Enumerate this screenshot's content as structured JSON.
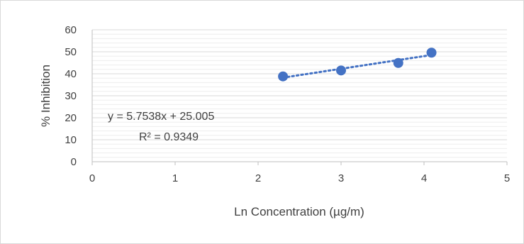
{
  "chart_data": {
    "type": "scatter",
    "title": "",
    "xlabel": "Ln Concentration (µg/m)",
    "ylabel": "% Inhibition",
    "xlim": [
      0,
      5
    ],
    "ylim": [
      0,
      60
    ],
    "xticks": [
      "0",
      "1",
      "2",
      "3",
      "4",
      "5"
    ],
    "yticks": [
      "0",
      "10",
      "20",
      "30",
      "40",
      "50",
      "60"
    ],
    "grid": true,
    "legend": "none",
    "series": [
      {
        "points": [
          {
            "x": 2.3,
            "y": 38.8
          },
          {
            "x": 3.0,
            "y": 41.5
          },
          {
            "x": 3.69,
            "y": 44.9
          },
          {
            "x": 4.09,
            "y": 49.6
          }
        ],
        "color": "#4472c4"
      }
    ],
    "trendline": {
      "type": "linear",
      "style": "dotted",
      "slope": 5.7538,
      "intercept": 25.005,
      "x_from": 2.3,
      "x_to": 4.09,
      "color": "#4472c4"
    },
    "annotations": {
      "equation": "y = 5.7538x + 25.005",
      "r_squared": "R² = 0.9349"
    }
  }
}
